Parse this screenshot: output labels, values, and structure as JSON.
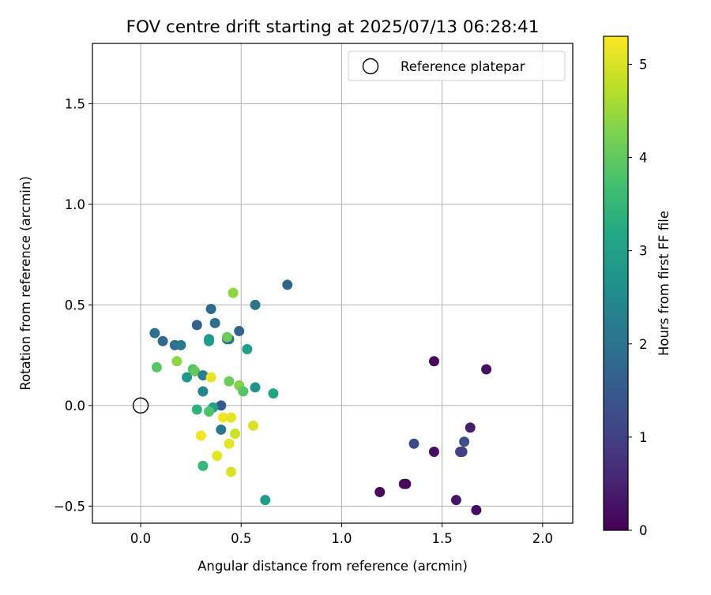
{
  "chart_data": {
    "type": "scatter",
    "title": "FOV centre drift starting at 2025/07/13 06:28:41",
    "xlabel": "Angular distance from reference (arcmin)",
    "ylabel": "Rotation from reference (arcmin)",
    "xlim": [
      -0.24,
      2.15
    ],
    "ylim": [
      -0.585,
      1.8
    ],
    "xticks": [
      0.0,
      0.5,
      1.0,
      1.5,
      2.0
    ],
    "xtick_labels": [
      "0.0",
      "0.5",
      "1.0",
      "1.5",
      "2.0"
    ],
    "yticks": [
      -0.5,
      0.0,
      0.5,
      1.0,
      1.5
    ],
    "ytick_labels": [
      "−0.5",
      "0.0",
      "0.5",
      "1.0",
      "1.5"
    ],
    "grid": true,
    "legend": {
      "position": "top-right",
      "entries": [
        "Reference platepar"
      ]
    },
    "reference_point": {
      "x": 0.0,
      "y": 0.0,
      "label": "Reference platepar"
    },
    "colorbar": {
      "label": "Hours from first FF file",
      "colormap": "viridis",
      "range": [
        0,
        5.3
      ],
      "ticks": [
        0,
        1,
        2,
        3,
        4,
        5
      ],
      "tick_labels": [
        "0",
        "1",
        "2",
        "3",
        "4",
        "5"
      ]
    },
    "series": [
      {
        "points": [
          {
            "x": 1.46,
            "y": 0.22,
            "c": 0.1
          },
          {
            "x": 1.72,
            "y": 0.18,
            "c": 0.2
          },
          {
            "x": 1.64,
            "y": -0.11,
            "c": 0.4
          },
          {
            "x": 1.46,
            "y": -0.23,
            "c": 0.2
          },
          {
            "x": 1.19,
            "y": -0.43,
            "c": 0.1
          },
          {
            "x": 1.31,
            "y": -0.39,
            "c": 0.15
          },
          {
            "x": 1.32,
            "y": -0.39,
            "c": 0.1
          },
          {
            "x": 1.57,
            "y": -0.47,
            "c": 0.3
          },
          {
            "x": 1.67,
            "y": -0.52,
            "c": 0.2
          },
          {
            "x": 1.36,
            "y": -0.19,
            "c": 1.2
          },
          {
            "x": 1.59,
            "y": -0.23,
            "c": 1.1
          },
          {
            "x": 1.6,
            "y": -0.23,
            "c": 1.0
          },
          {
            "x": 1.61,
            "y": -0.18,
            "c": 1.3
          },
          {
            "x": 0.73,
            "y": 0.6,
            "c": 1.7
          },
          {
            "x": 0.57,
            "y": 0.5,
            "c": 2.1
          },
          {
            "x": 0.35,
            "y": 0.48,
            "c": 1.8
          },
          {
            "x": 0.28,
            "y": 0.4,
            "c": 1.6
          },
          {
            "x": 0.37,
            "y": 0.41,
            "c": 1.9
          },
          {
            "x": 0.49,
            "y": 0.37,
            "c": 1.7
          },
          {
            "x": 0.07,
            "y": 0.36,
            "c": 2.0
          },
          {
            "x": 0.11,
            "y": 0.32,
            "c": 1.8
          },
          {
            "x": 0.17,
            "y": 0.3,
            "c": 1.9
          },
          {
            "x": 0.2,
            "y": 0.3,
            "c": 2.1
          },
          {
            "x": 0.43,
            "y": 0.33,
            "c": 1.7
          },
          {
            "x": 0.44,
            "y": 0.33,
            "c": 1.9
          },
          {
            "x": 0.34,
            "y": 0.33,
            "c": 2.8
          },
          {
            "x": 0.34,
            "y": 0.32,
            "c": 2.9
          },
          {
            "x": 0.53,
            "y": 0.28,
            "c": 3.0
          },
          {
            "x": 0.46,
            "y": 0.56,
            "c": 4.4
          },
          {
            "x": 0.43,
            "y": 0.34,
            "c": 4.1
          },
          {
            "x": 0.18,
            "y": 0.22,
            "c": 4.4
          },
          {
            "x": 0.08,
            "y": 0.19,
            "c": 3.9
          },
          {
            "x": 0.26,
            "y": 0.18,
            "c": 3.8
          },
          {
            "x": 0.27,
            "y": 0.17,
            "c": 4.0
          },
          {
            "x": 0.23,
            "y": 0.14,
            "c": 2.8
          },
          {
            "x": 0.31,
            "y": 0.15,
            "c": 2.2
          },
          {
            "x": 0.35,
            "y": 0.14,
            "c": 5.1
          },
          {
            "x": 0.44,
            "y": 0.12,
            "c": 4.1
          },
          {
            "x": 0.49,
            "y": 0.1,
            "c": 4.3
          },
          {
            "x": 0.51,
            "y": 0.07,
            "c": 3.9
          },
          {
            "x": 0.57,
            "y": 0.09,
            "c": 2.7
          },
          {
            "x": 0.66,
            "y": 0.06,
            "c": 3.1
          },
          {
            "x": 0.31,
            "y": 0.07,
            "c": 2.4
          },
          {
            "x": 0.4,
            "y": 0.0,
            "c": 1.5
          },
          {
            "x": 0.36,
            "y": -0.01,
            "c": 3.0
          },
          {
            "x": 0.28,
            "y": -0.02,
            "c": 3.4
          },
          {
            "x": 0.34,
            "y": -0.03,
            "c": 3.8
          },
          {
            "x": 0.41,
            "y": -0.06,
            "c": 5.2
          },
          {
            "x": 0.45,
            "y": -0.06,
            "c": 5.1
          },
          {
            "x": 0.56,
            "y": -0.1,
            "c": 5.0
          },
          {
            "x": 0.4,
            "y": -0.12,
            "c": 2.1
          },
          {
            "x": 0.47,
            "y": -0.14,
            "c": 4.9
          },
          {
            "x": 0.3,
            "y": -0.15,
            "c": 5.2
          },
          {
            "x": 0.44,
            "y": -0.19,
            "c": 5.1
          },
          {
            "x": 0.38,
            "y": -0.25,
            "c": 5.1
          },
          {
            "x": 0.31,
            "y": -0.3,
            "c": 3.5
          },
          {
            "x": 0.45,
            "y": -0.33,
            "c": 5.0
          },
          {
            "x": 0.62,
            "y": -0.47,
            "c": 2.9
          }
        ]
      }
    ]
  }
}
